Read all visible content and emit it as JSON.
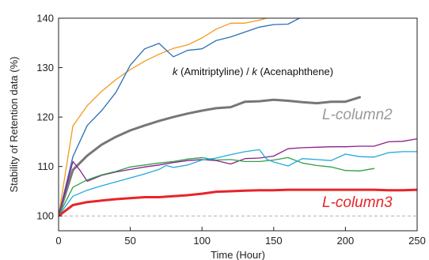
{
  "chart_data": {
    "type": "line",
    "title": "",
    "xlabel": "Time (Hour)",
    "ylabel": "Stability of Retention data (%)",
    "xlim": [
      0,
      250
    ],
    "ylim": [
      97,
      140
    ],
    "xticks": [
      0,
      50,
      100,
      150,
      200,
      250
    ],
    "yticks": [
      100,
      110,
      120,
      130,
      140
    ],
    "grid": false,
    "legend": "none",
    "reference_line": {
      "y": 100,
      "style": "dashed",
      "color": "#b0b0b0"
    },
    "annotations": [
      {
        "italic": "k",
        "text": " (Amitriptyline) / ",
        "italic2": "k",
        "text2": " (Acenaphthene)",
        "color": "#111111"
      },
      {
        "text": "L-column2",
        "color": "#9a9a9a"
      },
      {
        "text": "L-column3",
        "color": "#e8242a"
      }
    ],
    "series": [
      {
        "color": "#f39a1e",
        "width": 1.3,
        "x": [
          0,
          10,
          20,
          30,
          40,
          50,
          60,
          70,
          80,
          90,
          100,
          110,
          120,
          130,
          140,
          145
        ],
        "y": [
          100,
          118.2,
          122.3,
          125.2,
          127.6,
          129.6,
          131.3,
          132.7,
          133.9,
          134.6,
          136.0,
          137.8,
          139.0,
          139.0,
          139.6,
          140.0
        ]
      },
      {
        "color": "#2a6fb8",
        "width": 1.3,
        "x": [
          0,
          10,
          20,
          30,
          40,
          50,
          60,
          70,
          80,
          90,
          100,
          110,
          120,
          130,
          140,
          150,
          160,
          168
        ],
        "y": [
          100,
          112.0,
          118.3,
          121.3,
          125.0,
          130.5,
          133.8,
          134.9,
          132.2,
          133.5,
          133.8,
          135.5,
          136.2,
          137.2,
          138.2,
          138.7,
          138.8,
          140.0
        ]
      },
      {
        "color": "#777777",
        "width": 3.0,
        "x": [
          0,
          10,
          20,
          30,
          40,
          50,
          60,
          70,
          80,
          90,
          100,
          110,
          120,
          130,
          140,
          150,
          160,
          170,
          180,
          190,
          200,
          210
        ],
        "y": [
          100,
          109.3,
          112.2,
          114.4,
          116.0,
          117.3,
          118.3,
          119.2,
          120.0,
          120.7,
          121.3,
          121.8,
          122.0,
          123.1,
          123.2,
          123.5,
          123.3,
          123.0,
          122.8,
          123.1,
          123.1,
          124.0
        ]
      },
      {
        "color": "#8b1f8b",
        "width": 1.3,
        "x": [
          0,
          10,
          15,
          20,
          30,
          40,
          50,
          60,
          70,
          80,
          90,
          100,
          110,
          120,
          130,
          140,
          150,
          160,
          170,
          180,
          190,
          200,
          210,
          220,
          230,
          240,
          250
        ],
        "y": [
          100,
          111.0,
          109.2,
          107.0,
          108.2,
          108.9,
          109.4,
          109.9,
          110.3,
          110.8,
          111.2,
          111.4,
          111.2,
          110.5,
          111.6,
          111.7,
          112.1,
          113.6,
          113.8,
          113.9,
          114.0,
          114.0,
          114.1,
          114.1,
          115.0,
          115.1,
          115.6
        ]
      },
      {
        "color": "#2fa04a",
        "width": 1.3,
        "x": [
          0,
          10,
          20,
          30,
          40,
          50,
          60,
          70,
          80,
          90,
          100,
          110,
          120,
          130,
          140,
          150,
          160,
          170,
          180,
          190,
          200,
          210,
          220
        ],
        "y": [
          100,
          105.8,
          107.3,
          108.3,
          109.0,
          109.9,
          110.3,
          110.7,
          111.0,
          111.5,
          111.8,
          111.3,
          111.4,
          111.0,
          111.0,
          111.3,
          111.8,
          110.7,
          110.2,
          109.9,
          109.2,
          109.1,
          109.6
        ]
      },
      {
        "color": "#24a8dc",
        "width": 1.3,
        "x": [
          0,
          10,
          20,
          30,
          40,
          50,
          60,
          70,
          75,
          80,
          90,
          100,
          110,
          120,
          130,
          140,
          145,
          150,
          160,
          170,
          180,
          190,
          200,
          210,
          220,
          230,
          240,
          250
        ],
        "y": [
          100,
          104.0,
          105.2,
          106.1,
          106.9,
          107.7,
          108.5,
          109.4,
          110.2,
          109.8,
          110.3,
          111.3,
          111.7,
          112.4,
          113.0,
          113.4,
          111.5,
          110.9,
          110.1,
          111.6,
          111.4,
          111.2,
          112.5,
          112.0,
          111.9,
          112.8,
          113.0,
          113.0
        ]
      },
      {
        "color": "#e8242a",
        "width": 3.0,
        "x": [
          0,
          10,
          20,
          30,
          40,
          50,
          60,
          70,
          80,
          90,
          100,
          110,
          120,
          130,
          140,
          150,
          160,
          170,
          180,
          190,
          200,
          210,
          220,
          230,
          240,
          250
        ],
        "y": [
          100,
          102.2,
          102.8,
          103.1,
          103.4,
          103.6,
          103.8,
          103.8,
          104.0,
          104.2,
          104.5,
          104.9,
          105.0,
          105.1,
          105.2,
          105.2,
          105.3,
          105.3,
          105.3,
          105.3,
          105.3,
          105.3,
          105.3,
          105.2,
          105.2,
          105.3
        ]
      }
    ]
  }
}
